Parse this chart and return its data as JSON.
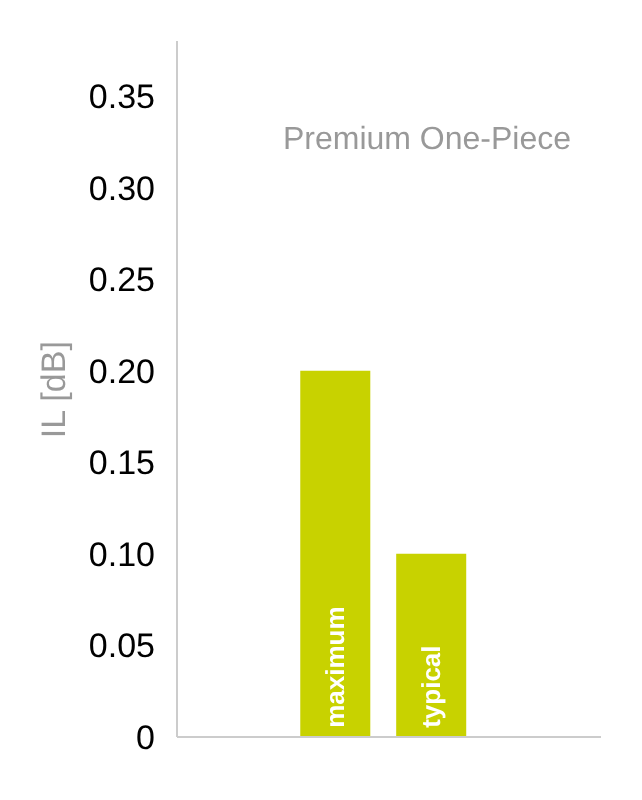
{
  "chart_data": {
    "type": "bar",
    "title": "Premium One-Piece",
    "ylabel": "IL [dB]",
    "categories": [
      "maximum",
      "typical"
    ],
    "values": [
      0.2,
      0.1
    ],
    "color": "#c8d200",
    "ylim": [
      0,
      0.38
    ],
    "yticks": [
      0,
      0.05,
      {
        "value": 0.1,
        "label": "0.10"
      },
      0.15,
      {
        "value": 0.2,
        "label": "0.20"
      },
      0.25,
      {
        "value": 0.3,
        "label": "0.30"
      },
      0.35
    ],
    "grid": false
  }
}
